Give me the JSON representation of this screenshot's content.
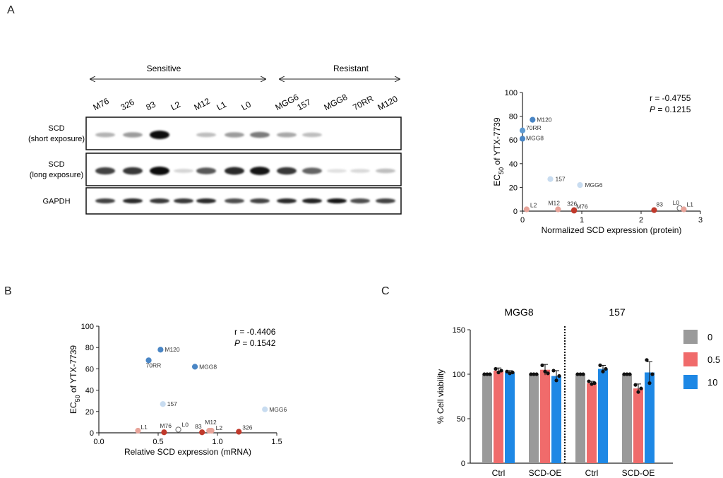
{
  "panels": {
    "a": "A",
    "b": "B",
    "c": "C"
  },
  "blot": {
    "group_sensitive": "Sensitive",
    "group_resistant": "Resistant",
    "lanes": [
      "M76",
      "326",
      "83",
      "L2",
      "M12",
      "L1",
      "L0",
      "MGG6",
      "157",
      "MGG8",
      "70RR",
      "M120"
    ],
    "rows": [
      {
        "label1": "SCD",
        "label2": "(short exposure)",
        "intensity": [
          0.25,
          0.35,
          1.0,
          0.0,
          0.2,
          0.35,
          0.5,
          0.3,
          0.2,
          0.0,
          0.0,
          0.0
        ]
      },
      {
        "label1": "SCD",
        "label2": "(long exposure)",
        "intensity": [
          0.75,
          0.8,
          1.0,
          0.1,
          0.65,
          0.85,
          0.95,
          0.8,
          0.6,
          0.05,
          0.08,
          0.2
        ]
      },
      {
        "label1": "GAPDH",
        "label2": "",
        "intensity": [
          0.75,
          0.85,
          0.8,
          0.8,
          0.85,
          0.7,
          0.75,
          0.85,
          0.9,
          0.95,
          0.7,
          0.75
        ]
      }
    ]
  },
  "chart_data": [
    {
      "type": "scatter",
      "panel": "A",
      "xlabel": "Normalized SCD expression (protein)",
      "ylabel_main": "EC",
      "ylabel_sub": "50",
      "ylabel_rest": " of YTX-7739",
      "xlim": [
        0,
        3
      ],
      "ylim": [
        0,
        100
      ],
      "xticks": [
        "0",
        "1",
        "2",
        "3"
      ],
      "yticks": [
        "0",
        "20",
        "40",
        "60",
        "80",
        "100"
      ],
      "stat_r": "r = -0.4755",
      "stat_p_label": "P",
      "stat_p_value": " = 0.1215",
      "points": [
        {
          "label": "M120",
          "x": 0.17,
          "y": 77,
          "color": "#4a86c5"
        },
        {
          "label": "70RR",
          "x": 0.0,
          "y": 68,
          "color": "#5e9bd2"
        },
        {
          "label": "MGG8",
          "x": 0.0,
          "y": 61,
          "color": "#4a86c5"
        },
        {
          "label": "157",
          "x": 0.47,
          "y": 27,
          "color": "#c8dcf0"
        },
        {
          "label": "MGG6",
          "x": 0.97,
          "y": 22,
          "color": "#c8dcf0"
        },
        {
          "label": "L2",
          "x": 0.07,
          "y": 1.5,
          "color": "#e8a49a"
        },
        {
          "label": "M12",
          "x": 0.6,
          "y": 1.5,
          "color": "#e8a49a"
        },
        {
          "label": "326",
          "x": 0.87,
          "y": 0.8,
          "color": "#c0392b"
        },
        {
          "label": "M76",
          "x": 0.87,
          "y": 0.4,
          "color": "#c0392b"
        },
        {
          "label": "83",
          "x": 2.22,
          "y": 0.8,
          "color": "#c0392b"
        },
        {
          "label": "L0",
          "x": 2.65,
          "y": 2.5,
          "color": "#ffffff"
        },
        {
          "label": "L1",
          "x": 2.72,
          "y": 1.5,
          "color": "#e8a49a"
        }
      ]
    },
    {
      "type": "scatter",
      "panel": "B",
      "xlabel": "Relative SCD expression (mRNA)",
      "ylabel_main": "EC",
      "ylabel_sub": "50",
      "ylabel_rest": " of YTX-7739",
      "xlim": [
        0,
        1.5
      ],
      "ylim": [
        0,
        100
      ],
      "xticks": [
        "0.0",
        "0.5",
        "1.0",
        "1.5"
      ],
      "yticks": [
        "0",
        "20",
        "40",
        "60",
        "80",
        "100"
      ],
      "stat_r": "r = -0.4406",
      "stat_p_label": "P",
      "stat_p_value": " = 0.1542",
      "points": [
        {
          "label": "M120",
          "x": 0.52,
          "y": 78,
          "color": "#4a86c5"
        },
        {
          "label": "70RR",
          "x": 0.42,
          "y": 68,
          "color": "#4a86c5"
        },
        {
          "label": "MGG8",
          "x": 0.81,
          "y": 62,
          "color": "#4a86c5"
        },
        {
          "label": "157",
          "x": 0.54,
          "y": 27,
          "color": "#c8dcf0"
        },
        {
          "label": "MGG6",
          "x": 1.4,
          "y": 22,
          "color": "#c8dcf0"
        },
        {
          "label": "L1",
          "x": 0.33,
          "y": 2,
          "color": "#e8a49a"
        },
        {
          "label": "M76",
          "x": 0.55,
          "y": 0.5,
          "color": "#c0392b"
        },
        {
          "label": "L0",
          "x": 0.67,
          "y": 3,
          "color": "#ffffff"
        },
        {
          "label": "83",
          "x": 0.87,
          "y": 0.5,
          "color": "#c0392b"
        },
        {
          "label": "M12",
          "x": 0.93,
          "y": 2,
          "color": "#e8a49a"
        },
        {
          "label": "L2",
          "x": 0.95,
          "y": 2,
          "color": "#e8a49a"
        },
        {
          "label": "326",
          "x": 1.18,
          "y": 1,
          "color": "#c0392b"
        }
      ]
    },
    {
      "type": "bar",
      "panel": "C",
      "ylabel": "% Cell viability",
      "ylim": [
        0,
        150
      ],
      "yticks": [
        "0",
        "50",
        "100",
        "150"
      ],
      "group_titles": [
        "MGG8",
        "157"
      ],
      "categories": [
        "Ctrl",
        "SCD-OE",
        "Ctrl",
        "SCD-OE"
      ],
      "legend_position": "right",
      "series": [
        {
          "name": "0",
          "color": "#9a9a9a",
          "values": [
            100,
            100,
            100,
            100
          ],
          "errors": [
            0,
            0,
            0,
            0
          ],
          "points": [
            [
              100,
              100,
              100
            ],
            [
              100,
              100,
              100
            ],
            [
              100,
              100,
              100
            ],
            [
              100,
              100,
              100
            ]
          ]
        },
        {
          "name": "0.5",
          "color": "#f06b6b",
          "values": [
            104,
            105,
            90,
            84
          ],
          "errors": [
            3,
            6,
            2,
            5
          ],
          "points": [
            [
              106,
              102,
              104
            ],
            [
              110,
              103,
              101
            ],
            [
              92,
              89,
              90
            ],
            [
              88,
              80,
              84
            ]
          ]
        },
        {
          "name": "10",
          "color": "#1e88e5",
          "values": [
            102,
            98,
            106,
            102
          ],
          "errors": [
            2,
            6,
            4,
            12
          ],
          "points": [
            [
              103,
              101,
              102
            ],
            [
              104,
              93,
              98
            ],
            [
              110,
              103,
              106
            ],
            [
              116,
              90,
              100
            ]
          ]
        }
      ]
    }
  ]
}
